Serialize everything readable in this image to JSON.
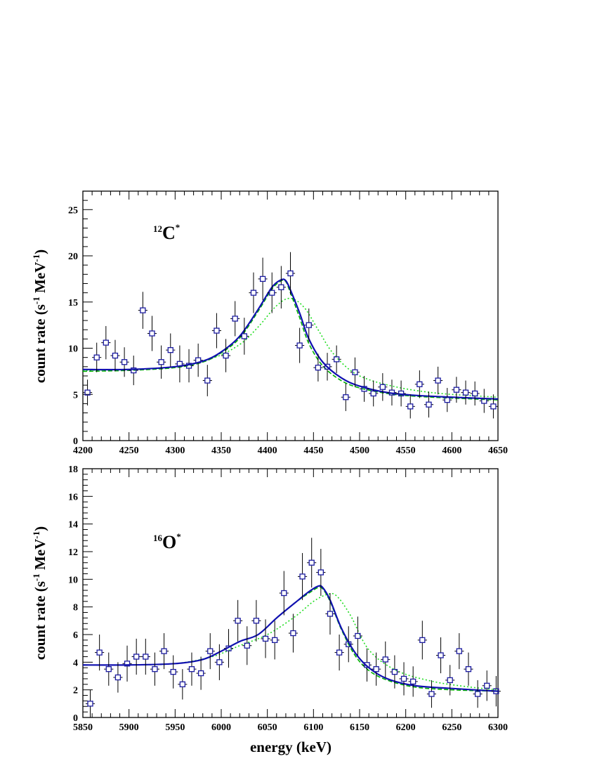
{
  "chart_data": [
    {
      "type": "scatter",
      "label": "¹²C*",
      "label_parts": {
        "mass": "12",
        "element": "C",
        "star": "*"
      },
      "xlabel": "",
      "ylabel": "count rate (s⁻¹ MeV⁻¹)",
      "ylabel_parts": {
        "pre": "count rate (s",
        "exp1": "-1",
        "mid": " MeV",
        "exp2": "-1",
        "post": ")"
      },
      "xlim": [
        4200,
        4650
      ],
      "ylim": [
        0,
        27
      ],
      "xticks": [
        4200,
        4250,
        4300,
        4350,
        4400,
        4450,
        4500,
        4550,
        4600,
        4650
      ],
      "yticks": [
        0,
        5,
        10,
        15,
        20,
        25
      ],
      "bin_width": 10,
      "grid": false,
      "colors": {
        "points": "#1a1aa0",
        "errorbars": "#000000",
        "fit_solid": "#1010b0",
        "fit_dashed": "#00b000",
        "fit_dotted": "#22dd22"
      },
      "points": {
        "x": [
          4205,
          4215,
          4225,
          4235,
          4245,
          4255,
          4265,
          4275,
          4285,
          4295,
          4305,
          4315,
          4325,
          4335,
          4345,
          4355,
          4365,
          4375,
          4385,
          4395,
          4405,
          4415,
          4425,
          4435,
          4445,
          4455,
          4465,
          4475,
          4485,
          4495,
          4505,
          4515,
          4525,
          4535,
          4545,
          4555,
          4565,
          4575,
          4585,
          4595,
          4605,
          4615,
          4625,
          4635,
          4645
        ],
        "y": [
          5.2,
          9.0,
          10.6,
          9.2,
          8.5,
          7.6,
          14.1,
          11.6,
          8.5,
          9.8,
          8.3,
          8.1,
          8.7,
          6.5,
          11.9,
          9.2,
          13.2,
          11.3,
          16.0,
          17.5,
          16.0,
          16.6,
          18.1,
          10.3,
          12.5,
          7.9,
          8.0,
          8.8,
          4.7,
          7.4,
          5.6,
          5.1,
          5.8,
          5.2,
          5.1,
          3.7,
          6.1,
          3.9,
          6.5,
          4.4,
          5.5,
          5.2,
          5.1,
          4.3,
          3.7
        ],
        "yerr": [
          1.4,
          1.6,
          1.8,
          1.7,
          1.6,
          1.6,
          2.0,
          1.9,
          1.8,
          1.8,
          2.0,
          1.8,
          1.8,
          1.7,
          1.9,
          1.8,
          1.9,
          2.0,
          2.2,
          2.3,
          2.2,
          2.3,
          2.3,
          1.9,
          1.8,
          1.5,
          1.5,
          1.5,
          1.5,
          1.6,
          1.4,
          1.4,
          1.5,
          1.4,
          1.4,
          1.3,
          1.5,
          1.4,
          1.5,
          1.3,
          1.4,
          1.3,
          1.3,
          1.3,
          1.3
        ]
      },
      "fits": [
        {
          "style": "solid",
          "x": [
            4200,
            4250,
            4300,
            4330,
            4350,
            4370,
            4390,
            4405,
            4415,
            4420,
            4425,
            4435,
            4445,
            4460,
            4480,
            4500,
            4530,
            4560,
            4600,
            4650
          ],
          "y": [
            7.7,
            7.7,
            8.0,
            8.6,
            9.6,
            11.3,
            14.2,
            16.6,
            17.4,
            17.3,
            16.3,
            13.8,
            11.0,
            8.5,
            6.8,
            5.9,
            5.2,
            4.9,
            4.7,
            4.5
          ]
        },
        {
          "style": "dashed",
          "x": [
            4200,
            4250,
            4300,
            4330,
            4350,
            4370,
            4390,
            4405,
            4415,
            4420,
            4425,
            4435,
            4445,
            4460,
            4480,
            4500,
            4530,
            4560,
            4600,
            4650
          ],
          "y": [
            7.5,
            7.6,
            7.9,
            8.5,
            9.5,
            11.1,
            14.0,
            16.4,
            17.3,
            17.2,
            16.0,
            13.3,
            10.5,
            8.1,
            6.5,
            5.7,
            5.1,
            4.8,
            4.6,
            4.4
          ]
        },
        {
          "style": "dotted",
          "x": [
            4200,
            4250,
            4300,
            4340,
            4370,
            4390,
            4410,
            4425,
            4440,
            4455,
            4470,
            4490,
            4510,
            4540,
            4570,
            4600,
            4650
          ],
          "y": [
            7.6,
            7.7,
            8.0,
            8.9,
            10.4,
            12.3,
            14.6,
            15.4,
            14.4,
            12.0,
            9.6,
            7.6,
            6.6,
            5.8,
            5.3,
            5.0,
            4.7
          ]
        }
      ]
    },
    {
      "type": "scatter",
      "label": "¹⁶O*",
      "label_parts": {
        "mass": "16",
        "element": "O",
        "star": "*"
      },
      "xlabel": "energy (keV)",
      "ylabel": "count rate (s⁻¹ MeV⁻¹)",
      "ylabel_parts": {
        "pre": "count rate (s",
        "exp1": "-1",
        "mid": " MeV",
        "exp2": "-1",
        "post": ")"
      },
      "xlim": [
        5850,
        6300
      ],
      "ylim": [
        0,
        18
      ],
      "xticks": [
        5850,
        5900,
        5950,
        6000,
        6050,
        6100,
        6150,
        6200,
        6250,
        6300
      ],
      "yticks": [
        0,
        2,
        4,
        6,
        8,
        10,
        12,
        14,
        16,
        18
      ],
      "bin_width": 10,
      "grid": false,
      "colors": {
        "points": "#1a1aa0",
        "errorbars": "#000000",
        "fit_solid": "#1010b0",
        "fit_dashed": "#00b000",
        "fit_dotted": "#22dd22"
      },
      "points": {
        "x": [
          5858,
          5868,
          5878,
          5888,
          5898,
          5908,
          5918,
          5928,
          5938,
          5948,
          5958,
          5968,
          5978,
          5988,
          5998,
          6008,
          6018,
          6028,
          6038,
          6048,
          6058,
          6068,
          6078,
          6088,
          6098,
          6108,
          6118,
          6128,
          6138,
          6148,
          6158,
          6168,
          6178,
          6188,
          6198,
          6208,
          6218,
          6228,
          6238,
          6248,
          6258,
          6268,
          6278,
          6288,
          6298
        ],
        "y": [
          1.0,
          4.7,
          3.5,
          2.9,
          3.9,
          4.4,
          4.4,
          3.5,
          4.8,
          3.3,
          2.4,
          3.5,
          3.2,
          4.8,
          4.0,
          5.0,
          7.0,
          5.2,
          7.0,
          5.7,
          5.6,
          9.0,
          6.1,
          10.2,
          11.2,
          10.5,
          7.5,
          4.7,
          5.3,
          5.9,
          3.8,
          3.5,
          4.2,
          3.3,
          2.8,
          2.6,
          5.6,
          1.7,
          4.5,
          2.7,
          4.8,
          3.5,
          1.7,
          2.3,
          1.9
        ],
        "yerr": [
          1.0,
          1.3,
          1.2,
          1.1,
          1.3,
          1.3,
          1.3,
          1.2,
          1.3,
          1.2,
          1.1,
          1.2,
          1.2,
          1.3,
          1.3,
          1.4,
          1.5,
          1.4,
          1.5,
          1.4,
          1.4,
          1.6,
          1.4,
          1.7,
          1.8,
          1.7,
          1.5,
          1.3,
          1.3,
          1.4,
          1.2,
          1.2,
          1.3,
          1.2,
          1.2,
          1.1,
          1.4,
          1.0,
          1.3,
          1.1,
          1.3,
          1.2,
          1.0,
          1.1,
          1.1
        ]
      },
      "fits": [
        {
          "style": "solid",
          "x": [
            5850,
            5900,
            5950,
            5980,
            6000,
            6020,
            6040,
            6060,
            6080,
            6095,
            6105,
            6110,
            6118,
            6130,
            6145,
            6160,
            6180,
            6210,
            6250,
            6300
          ],
          "y": [
            3.8,
            3.8,
            3.9,
            4.2,
            4.8,
            5.5,
            6.0,
            7.2,
            8.3,
            9.1,
            9.5,
            9.4,
            8.5,
            6.5,
            4.7,
            3.6,
            2.8,
            2.3,
            2.1,
            1.9
          ]
        },
        {
          "style": "dashed",
          "x": [
            5850,
            5900,
            5950,
            5980,
            6000,
            6020,
            6040,
            6060,
            6080,
            6095,
            6105,
            6110,
            6118,
            6130,
            6145,
            6160,
            6180,
            6210,
            6250,
            6300
          ],
          "y": [
            3.8,
            3.8,
            3.9,
            4.2,
            4.8,
            5.5,
            6.0,
            7.2,
            8.3,
            9.0,
            9.4,
            9.3,
            8.4,
            6.4,
            4.5,
            3.4,
            2.7,
            2.2,
            2.0,
            1.9
          ]
        },
        {
          "style": "dotted",
          "x": [
            5850,
            5900,
            5950,
            5990,
            6020,
            6050,
            6080,
            6100,
            6115,
            6125,
            6140,
            6160,
            6190,
            6230,
            6270,
            6300
          ],
          "y": [
            3.8,
            3.8,
            3.9,
            4.4,
            5.2,
            6.0,
            7.3,
            8.4,
            8.9,
            8.8,
            7.4,
            4.9,
            3.4,
            2.6,
            2.2,
            2.0
          ]
        }
      ]
    }
  ]
}
